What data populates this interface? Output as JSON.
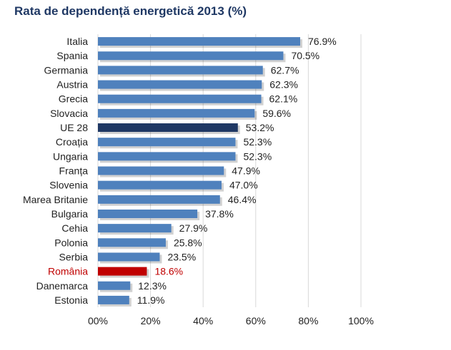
{
  "chart_data": {
    "type": "bar",
    "orientation": "horizontal",
    "title": "Rata de dependență energetică 2013 (%)",
    "categories": [
      "Italia",
      "Spania",
      "Germania",
      "Austria",
      "Grecia",
      "Slovacia",
      "UE 28",
      "Croația",
      "Ungaria",
      "Franța",
      "Slovenia",
      "Marea Britanie",
      "Bulgaria",
      "Cehia",
      "Polonia",
      "Serbia",
      "România",
      "Danemarca",
      "Estonia"
    ],
    "values": [
      76.9,
      70.5,
      62.7,
      62.3,
      62.1,
      59.6,
      53.2,
      52.3,
      52.3,
      47.9,
      47.0,
      46.4,
      37.8,
      27.9,
      25.8,
      23.5,
      18.6,
      12.3,
      11.9
    ],
    "value_labels": [
      "76.9%",
      "70.5%",
      "62.7%",
      "62.3%",
      "62.1%",
      "59.6%",
      "53.2%",
      "52.3%",
      "52.3%",
      "47.9%",
      "47.0%",
      "46.4%",
      "37.8%",
      "27.9%",
      "25.8%",
      "23.5%",
      "18.6%",
      "12.3%",
      "11.9%"
    ],
    "x_ticks": [
      "00%",
      "20%",
      "40%",
      "60%",
      "80%",
      "100%"
    ],
    "xlim": [
      0,
      100
    ],
    "grid": true,
    "legend": "none",
    "colors": {
      "default_bar": "#4f81bd",
      "highlight_bars": {
        "UE 28": "#1f3864",
        "România": "#c00000"
      },
      "highlight_labels": {
        "România": "#c00000"
      },
      "title": "#1f3864",
      "grid": "#d9d9d9"
    }
  }
}
